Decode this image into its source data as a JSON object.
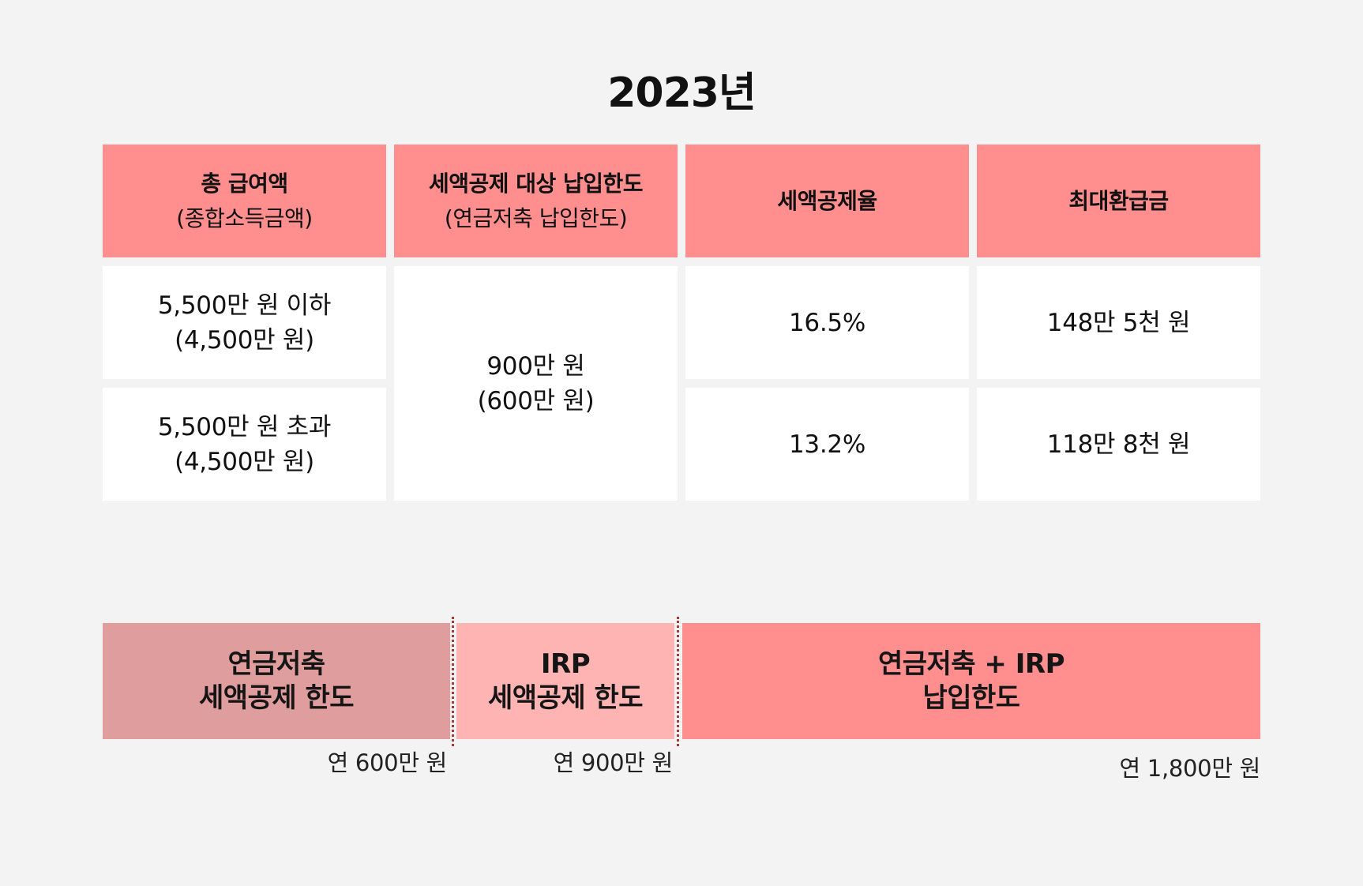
{
  "title": "2023년",
  "table": {
    "headers": [
      {
        "line1": "총 급여액",
        "line2": "(종합소득금액)"
      },
      {
        "line1": "세액공제 대상 납입한도",
        "line2": "(연금저축 납입한도)"
      },
      {
        "line1": "세액공제율",
        "line2": ""
      },
      {
        "line1": "최대환급금",
        "line2": ""
      }
    ],
    "rows": [
      {
        "income_line1": "5,500만 원 이하",
        "income_line2": "(4,500만 원)",
        "rate": "16.5%",
        "refund": "148만 5천 원"
      },
      {
        "income_line1": "5,500만 원 초과",
        "income_line2": "(4,500만 원)",
        "rate": "13.2%",
        "refund": "118만 8천 원"
      }
    ],
    "limit": {
      "line1": "900만 원",
      "line2": "(600만 원)"
    }
  },
  "bars": [
    {
      "line1": "연금저축",
      "line2": "세액공제 한도",
      "amount": "연 600만 원",
      "color": "#e09d9d"
    },
    {
      "line1": "IRP",
      "line2": "세액공제 한도",
      "amount": "연 900만 원",
      "color": "#ffb4b4"
    },
    {
      "line1": "연금저축 + IRP",
      "line2": "납입한도",
      "amount": "연 1,800만 원",
      "color": "#ff8e8e"
    }
  ],
  "colors": {
    "header_bg": "#ff8e8e",
    "background": "#f3f3f3",
    "cell_bg": "#ffffff",
    "divider": "#a53a3a"
  }
}
